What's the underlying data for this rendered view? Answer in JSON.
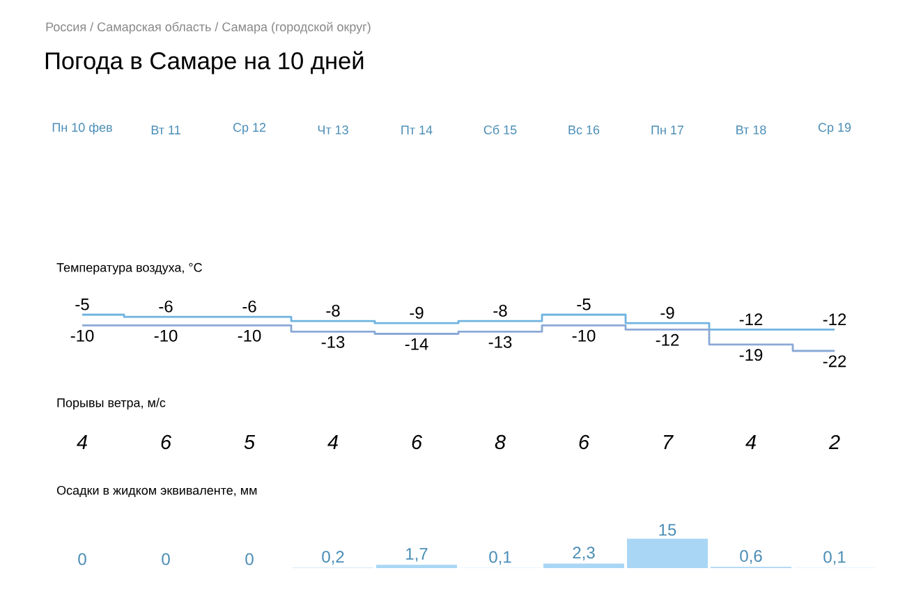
{
  "chart_data": [
    {
      "type": "step",
      "title": "Погода в Самаре на 10 дней",
      "subtitle": "Россия / Самарская область / Самара (городской округ)",
      "annotations": [
        "Температура воздуха, °C"
      ],
      "categories": [
        "Пн 10 фев",
        "Вт 11",
        "Ср 12",
        "Чт 13",
        "Пт 14",
        "Сб 15",
        "Вс 16",
        "Пн 17",
        "Вт 18",
        "Ср 19"
      ],
      "series": [
        {
          "color": "#6fb3e0",
          "values": [
            -5,
            -6,
            -6,
            -8,
            -9,
            -8,
            -5,
            -9,
            -12,
            -12
          ]
        },
        {
          "color": "#8aa9d6",
          "values": [
            -10,
            -10,
            -10,
            -13,
            -14,
            -13,
            -10,
            -12,
            -19,
            -22
          ]
        }
      ],
      "data_labels": true,
      "tick_labels": "x"
    },
    {
      "type": "other",
      "title": "Порывы ветра, м/с",
      "values": [
        4,
        6,
        5,
        4,
        6,
        8,
        6,
        7,
        4,
        2
      ],
      "data_labels": true
    },
    {
      "type": "bar",
      "title": "Осадки в жидком эквиваленте, мм",
      "categories": [
        null,
        null,
        null,
        null,
        null,
        null,
        null,
        null,
        null,
        null
      ],
      "values": [
        0,
        0,
        0,
        0.2,
        1.7,
        0.1,
        2.3,
        15,
        0.6,
        0.1
      ],
      "value_labels": [
        "0",
        "0",
        "0",
        "0,2",
        "1,7",
        "0,1",
        "2,3",
        "15",
        "0,6",
        "0,1"
      ],
      "color": "#a9d6f5",
      "tick_labels": false
    }
  ]
}
